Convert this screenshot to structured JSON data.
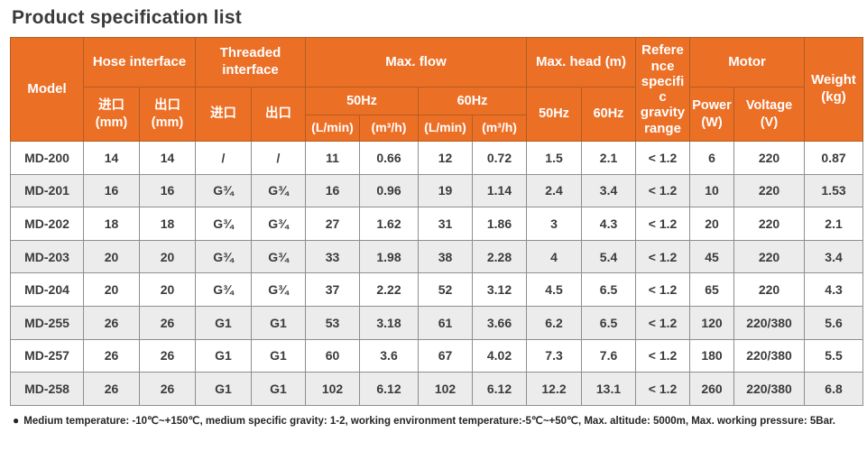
{
  "page": {
    "title": "Product specification list"
  },
  "colors": {
    "accent": "#EC6F26",
    "header_text": "#FFFFFF",
    "body_text": "#3B3B3B",
    "alt_row": "#ECECEC",
    "border_gray": "#8E8E8E",
    "header_border": "#B05E20",
    "page_bg": "#FFFFFF"
  },
  "table": {
    "header": {
      "model": "Model",
      "hose_interface": "Hose interface",
      "threaded_interface": "Threaded interface",
      "max_flow": "Max. flow",
      "max_head": "Max. head (m)",
      "ref_gravity": "Reference specific gravity range",
      "motor": "Motor",
      "weight": "Weight (kg)",
      "hose_inlet": "进口 (mm)",
      "hose_outlet": "出口 (mm)",
      "thread_inlet": "进口",
      "thread_outlet": "出口",
      "flow_50hz": "50Hz",
      "flow_60hz": "60Hz",
      "head_50hz": "50Hz",
      "head_60hz": "60Hz",
      "unit_lmin": "(L/min)",
      "unit_m3h": "(m³/h)",
      "power": "Power (W)",
      "voltage": "Voltage (V)"
    },
    "rows": [
      [
        "MD-200",
        "14",
        "14",
        "/",
        "/",
        "11",
        "0.66",
        "12",
        "0.72",
        "1.5",
        "2.1",
        "< 1.2",
        "6",
        "220",
        "0.87"
      ],
      [
        "MD-201",
        "16",
        "16",
        "G¾",
        "G¾",
        "16",
        "0.96",
        "19",
        "1.14",
        "2.4",
        "3.4",
        "< 1.2",
        "10",
        "220",
        "1.53"
      ],
      [
        "MD-202",
        "18",
        "18",
        "G¾",
        "G¾",
        "27",
        "1.62",
        "31",
        "1.86",
        "3",
        "4.3",
        "< 1.2",
        "20",
        "220",
        "2.1"
      ],
      [
        "MD-203",
        "20",
        "20",
        "G¾",
        "G¾",
        "33",
        "1.98",
        "38",
        "2.28",
        "4",
        "5.4",
        "< 1.2",
        "45",
        "220",
        "3.4"
      ],
      [
        "MD-204",
        "20",
        "20",
        "G¾",
        "G¾",
        "37",
        "2.22",
        "52",
        "3.12",
        "4.5",
        "6.5",
        "< 1.2",
        "65",
        "220",
        "4.3"
      ],
      [
        "MD-255",
        "26",
        "26",
        "G1",
        "G1",
        "53",
        "3.18",
        "61",
        "3.66",
        "6.2",
        "6.5",
        "< 1.2",
        "120",
        "220/380",
        "5.6"
      ],
      [
        "MD-257",
        "26",
        "26",
        "G1",
        "G1",
        "60",
        "3.6",
        "67",
        "4.02",
        "7.3",
        "7.6",
        "< 1.2",
        "180",
        "220/380",
        "5.5"
      ],
      [
        "MD-258",
        "26",
        "26",
        "G1",
        "G1",
        "102",
        "6.12",
        "102",
        "6.12",
        "12.2",
        "13.1",
        "< 1.2",
        "260",
        "220/380",
        "6.8"
      ]
    ]
  },
  "footnote": {
    "bullet": "●",
    "text": "Medium temperature: -10℃~+150℃, medium specific gravity: 1-2, working environment temperature:-5℃~+50℃, Max. altitude: 5000m, Max. working pressure: 5Bar."
  }
}
